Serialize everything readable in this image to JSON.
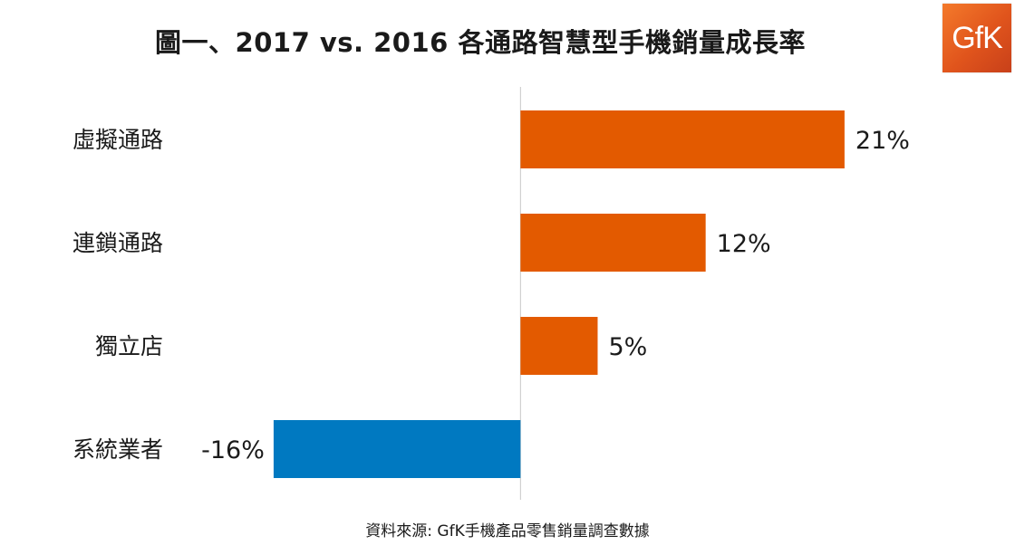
{
  "title": "圖一、2017 vs. 2016 各通路智慧型手機銷量成長率",
  "logo": {
    "text": "GfK"
  },
  "source": "資料來源: GfK手機產品零售銷量調查數據",
  "colors": {
    "positive": "#E35A00",
    "negative": "#0079C1",
    "axis": "#c8c8c8"
  },
  "chart_data": {
    "type": "bar",
    "orientation": "horizontal",
    "title": "圖一、2017 vs. 2016 各通路智慧型手機銷量成長率",
    "categories": [
      "虛擬通路",
      "連鎖通路",
      "獨立店",
      "系統業者"
    ],
    "values": [
      21,
      12,
      5,
      -16
    ],
    "value_labels": [
      "21%",
      "12%",
      "5%",
      "-16%"
    ],
    "unit": "%",
    "xlim": [
      -16.7,
      25
    ],
    "grid": false,
    "legend": "none"
  }
}
